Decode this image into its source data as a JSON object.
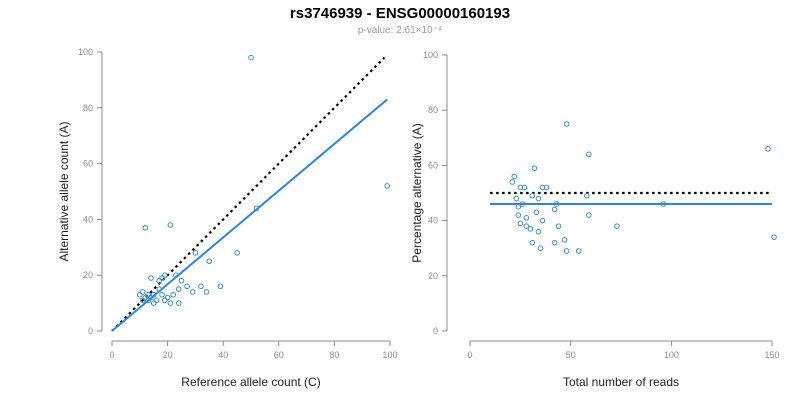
{
  "title": "rs3746939 - ENSG00000160193",
  "subtitle": "p-value: 2.61×10⁻⁴",
  "colors": {
    "points": "#3a8fc7",
    "fit": "#2a86e0",
    "reference": "#000000",
    "axis": "#8c8c8c"
  },
  "chart_data": [
    {
      "type": "scatter",
      "xlabel": "Reference allele count (C)",
      "ylabel": "Alternative allele count (A)",
      "xlim": [
        0,
        100
      ],
      "ylim": [
        0,
        100
      ],
      "xticks": [
        0,
        20,
        40,
        60,
        80,
        100
      ],
      "yticks": [
        0,
        20,
        40,
        60,
        80,
        100
      ],
      "points": [
        [
          12,
          37
        ],
        [
          50,
          98
        ],
        [
          99,
          52
        ],
        [
          21,
          38
        ],
        [
          45,
          28
        ],
        [
          52,
          44
        ],
        [
          10,
          13
        ],
        [
          11,
          11
        ],
        [
          11,
          14
        ],
        [
          12,
          12
        ],
        [
          13,
          11
        ],
        [
          13,
          13
        ],
        [
          14,
          12
        ],
        [
          14,
          19
        ],
        [
          15,
          10
        ],
        [
          15,
          13
        ],
        [
          16,
          11
        ],
        [
          17,
          15
        ],
        [
          17,
          18
        ],
        [
          18,
          13
        ],
        [
          18,
          19
        ],
        [
          19,
          11
        ],
        [
          19,
          20
        ],
        [
          20,
          12
        ],
        [
          21,
          10
        ],
        [
          22,
          13
        ],
        [
          23,
          20
        ],
        [
          24,
          10
        ],
        [
          24,
          15
        ],
        [
          25,
          18
        ],
        [
          27,
          16
        ],
        [
          29,
          14
        ],
        [
          30,
          28
        ],
        [
          32,
          16
        ],
        [
          34,
          14
        ],
        [
          35,
          25
        ],
        [
          39,
          16
        ]
      ],
      "reference_line": {
        "style": "dotted",
        "from": [
          0,
          0
        ],
        "to": [
          98,
          98
        ]
      },
      "fit_line": {
        "style": "solid",
        "from": [
          0,
          0
        ],
        "to": [
          99,
          83
        ]
      },
      "grid": false
    },
    {
      "type": "scatter",
      "xlabel": "Total number of reads",
      "ylabel": "Percentage alternative (A)",
      "xlim": [
        0,
        150
      ],
      "ylim": [
        0,
        100
      ],
      "xticks": [
        0,
        50,
        100,
        150
      ],
      "yticks": [
        0,
        20,
        40,
        60,
        80,
        100
      ],
      "points": [
        [
          48,
          75
        ],
        [
          148,
          66
        ],
        [
          59,
          64
        ],
        [
          32,
          59
        ],
        [
          22,
          56
        ],
        [
          21,
          54
        ],
        [
          25,
          52
        ],
        [
          27,
          52
        ],
        [
          36,
          52
        ],
        [
          38,
          52
        ],
        [
          31,
          49
        ],
        [
          23,
          48
        ],
        [
          34,
          48
        ],
        [
          58,
          49
        ],
        [
          26,
          46
        ],
        [
          24,
          45
        ],
        [
          43,
          46
        ],
        [
          42,
          44
        ],
        [
          33,
          43
        ],
        [
          59,
          42
        ],
        [
          24,
          42
        ],
        [
          28,
          41
        ],
        [
          25,
          39
        ],
        [
          36,
          40
        ],
        [
          44,
          38
        ],
        [
          73,
          38
        ],
        [
          30,
          37
        ],
        [
          34,
          36
        ],
        [
          47,
          33
        ],
        [
          42,
          32
        ],
        [
          31,
          32
        ],
        [
          35,
          30
        ],
        [
          48,
          29
        ],
        [
          54,
          29
        ],
        [
          96,
          46
        ],
        [
          151,
          34
        ],
        [
          28,
          38
        ]
      ],
      "reference_line": {
        "style": "dotted",
        "from": [
          10,
          50
        ],
        "to": [
          150,
          50
        ]
      },
      "fit_line": {
        "style": "solid",
        "from": [
          10,
          46
        ],
        "to": [
          150,
          46
        ]
      },
      "grid": false
    }
  ]
}
